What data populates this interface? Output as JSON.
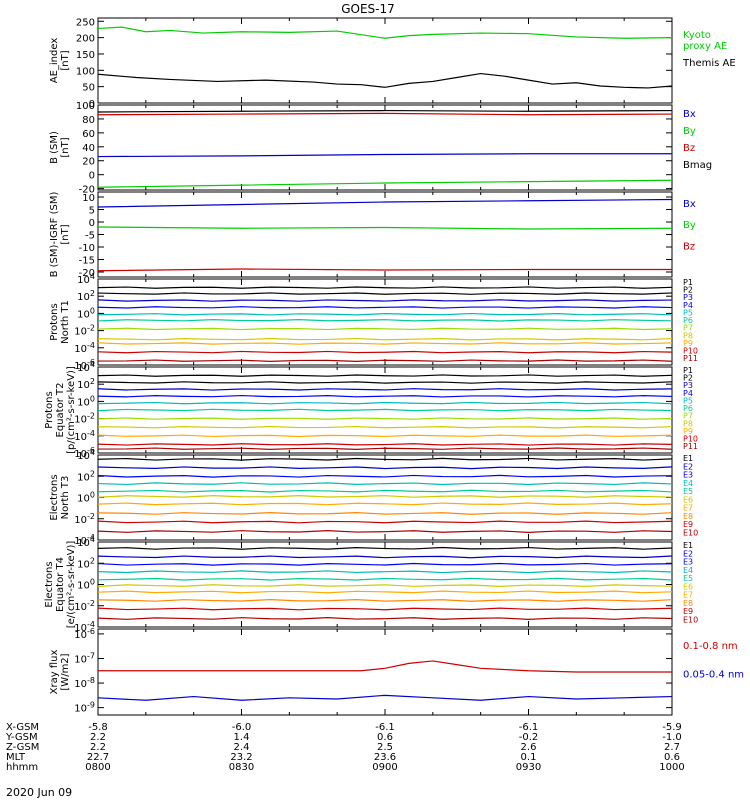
{
  "title": "GOES-17",
  "date_label": "2020 Jun 09",
  "footer": {
    "row_labels": [
      "X-GSM",
      "Y-GSM",
      "Z-GSM",
      "MLT",
      "hhmm"
    ],
    "columns": [
      [
        "-5.8",
        "2.2",
        "2.2",
        "22.7",
        "0800"
      ],
      [
        "-6.0",
        "1.4",
        "2.4",
        "23.2",
        "0830"
      ],
      [
        "-6.1",
        "0.6",
        "2.5",
        "23.6",
        "0900"
      ],
      [
        "-6.1",
        "-0.2",
        "2.6",
        "0.1",
        "0930"
      ],
      [
        "-5.9",
        "-1.0",
        "2.7",
        "0.6",
        "1000"
      ]
    ]
  },
  "colors": {
    "black": "#000000",
    "green": "#00cc00",
    "blue": "#0000cc",
    "red": "#cc0000",
    "cyan": "#00bbbb",
    "teal": "#00cc99",
    "yellow": "#cccc00",
    "orange": "#ff8800",
    "darkred": "#aa0000"
  },
  "chart_data": [
    {
      "type": "line",
      "id": "ae",
      "ylabel": "AE_index\n[nT]",
      "ylim": [
        0,
        260
      ],
      "yticks": [
        "0",
        "50",
        "100",
        "150",
        "200",
        "250"
      ],
      "xlim": [
        "0800",
        "1000"
      ],
      "series": [
        {
          "name": "Kyoto\nproxy AE",
          "color": "#00cc00",
          "x": [
            0,
            5,
            10,
            15,
            22,
            30,
            40,
            50,
            60,
            65,
            70,
            80,
            90,
            100,
            110,
            120
          ],
          "values": [
            228,
            232,
            218,
            222,
            214,
            218,
            216,
            220,
            198,
            206,
            210,
            214,
            212,
            202,
            198,
            200
          ]
        },
        {
          "name": "Themis AE",
          "color": "#000000",
          "x": [
            0,
            8,
            15,
            25,
            35,
            45,
            50,
            55,
            60,
            65,
            70,
            75,
            80,
            85,
            90,
            95,
            100,
            105,
            110,
            115,
            120
          ],
          "values": [
            88,
            78,
            72,
            66,
            70,
            64,
            58,
            56,
            48,
            60,
            66,
            78,
            90,
            82,
            70,
            58,
            62,
            52,
            48,
            46,
            52
          ]
        }
      ]
    },
    {
      "type": "line",
      "id": "bsm",
      "ylabel": "B (SM)\n[nT]",
      "ylim": [
        -22,
        100
      ],
      "yticks": [
        "-20",
        "0",
        "20",
        "40",
        "60",
        "80",
        "100"
      ],
      "series": [
        {
          "name": "Bx",
          "color": "#0000cc",
          "x": [
            0,
            30,
            60,
            90,
            120
          ],
          "values": [
            26,
            27,
            29,
            30,
            30
          ]
        },
        {
          "name": "By",
          "color": "#00cc00",
          "x": [
            0,
            30,
            60,
            90,
            120
          ],
          "values": [
            -18,
            -15,
            -12,
            -10,
            -8
          ]
        },
        {
          "name": "Bz",
          "color": "#cc0000",
          "x": [
            0,
            30,
            60,
            90,
            120
          ],
          "values": [
            86,
            87,
            88,
            86,
            87
          ]
        },
        {
          "name": "Bmag",
          "color": "#000000",
          "x": [
            0,
            30,
            60,
            90,
            120
          ],
          "values": [
            90,
            91,
            92,
            91,
            92
          ]
        }
      ]
    },
    {
      "type": "line",
      "id": "bigrf",
      "ylabel": "B (SM)-IGRF (SM)\n[nT]",
      "ylim": [
        -22,
        12
      ],
      "yticks": [
        "-20",
        "-15",
        "-10",
        "-5",
        "0",
        "5",
        "10"
      ],
      "series": [
        {
          "name": "Bx",
          "color": "#0000cc",
          "x": [
            0,
            30,
            60,
            90,
            120
          ],
          "values": [
            6,
            7,
            8,
            8.5,
            9
          ]
        },
        {
          "name": "By",
          "color": "#00cc00",
          "x": [
            0,
            30,
            60,
            90,
            120
          ],
          "values": [
            -2,
            -2.5,
            -2.2,
            -2.8,
            -2.5
          ]
        },
        {
          "name": "Bz",
          "color": "#cc0000",
          "x": [
            0,
            30,
            60,
            90,
            120
          ],
          "values": [
            -19.5,
            -18.8,
            -19.2,
            -19,
            -19
          ]
        }
      ]
    },
    {
      "type": "line",
      "id": "p1",
      "scale": "log",
      "ylabel": "Protons\nNorth T1",
      "ylim_exp": [
        -6,
        4
      ],
      "yticks": [
        "10^-6",
        "10^-4",
        "10^-2",
        "10^0",
        "10^2",
        "10^4"
      ],
      "series": [
        {
          "name": "P1",
          "color": "#000000",
          "log_values": 3.0
        },
        {
          "name": "P2",
          "color": "#000000",
          "log_values": 2.3
        },
        {
          "name": "P3",
          "color": "#0000cc",
          "log_values": 1.5
        },
        {
          "name": "P4",
          "color": "#0000ff",
          "log_values": 0.7
        },
        {
          "name": "P5",
          "color": "#00bbbb",
          "log_values": -0.1
        },
        {
          "name": "P6",
          "color": "#00cc99",
          "log_values": -0.8
        },
        {
          "name": "P7",
          "color": "#99dd00",
          "log_values": -1.8
        },
        {
          "name": "P8",
          "color": "#cccc00",
          "log_values": -3.0
        },
        {
          "name": "P9",
          "color": "#ffaa00",
          "log_values": -3.5
        },
        {
          "name": "P10",
          "color": "#cc0000",
          "log_values": -4.5
        },
        {
          "name": "P11",
          "color": "#aa0000",
          "log_values": -5.5
        }
      ]
    },
    {
      "type": "line",
      "id": "p2",
      "scale": "log",
      "ylabel": "Protons\nEquator T2\n[p/(cm²-s-sr-keV)]",
      "ylim_exp": [
        -6,
        4
      ],
      "yticks": [
        "10^-6",
        "10^-4",
        "10^-2",
        "10^0",
        "10^2",
        "10^4"
      ],
      "series": [
        {
          "name": "P1",
          "color": "#000000",
          "log_values": 3.0
        },
        {
          "name": "P2",
          "color": "#000000",
          "log_values": 2.2
        },
        {
          "name": "P3",
          "color": "#0000cc",
          "log_values": 1.4
        },
        {
          "name": "P4",
          "color": "#0000ff",
          "log_values": 0.6
        },
        {
          "name": "P5",
          "color": "#00bbbb",
          "log_values": -0.2
        },
        {
          "name": "P6",
          "color": "#00cc99",
          "log_values": -1.0
        },
        {
          "name": "P7",
          "color": "#99dd00",
          "log_values": -2.0
        },
        {
          "name": "P8",
          "color": "#cccc00",
          "log_values": -3.0
        },
        {
          "name": "P9",
          "color": "#ffaa00",
          "log_values": -4.0
        },
        {
          "name": "P10",
          "color": "#cc0000",
          "log_values": -5.0
        },
        {
          "name": "P11",
          "color": "#aa0000",
          "log_values": -5.5
        }
      ]
    },
    {
      "type": "line",
      "id": "e1",
      "scale": "log",
      "ylabel": "Electrons\nNorth T3",
      "ylim_exp": [
        -4,
        4
      ],
      "yticks": [
        "10^-4",
        "10^-2",
        "10^0",
        "10^2",
        "10^4"
      ],
      "series": [
        {
          "name": "E1",
          "color": "#000000",
          "log_values": 3.6
        },
        {
          "name": "E2",
          "color": "#0000cc",
          "log_values": 2.8
        },
        {
          "name": "E3",
          "color": "#0000ff",
          "log_values": 2.0
        },
        {
          "name": "E4",
          "color": "#00bbbb",
          "log_values": 1.3
        },
        {
          "name": "E5",
          "color": "#00cc99",
          "log_values": 0.6
        },
        {
          "name": "E6",
          "color": "#cccc00",
          "log_values": 0.1
        },
        {
          "name": "E7",
          "color": "#ffaa00",
          "log_values": -0.6
        },
        {
          "name": "E8",
          "color": "#ff8800",
          "log_values": -1.5
        },
        {
          "name": "E9",
          "color": "#cc0000",
          "log_values": -2.3
        },
        {
          "name": "E10",
          "color": "#aa0000",
          "log_values": -3.2
        }
      ]
    },
    {
      "type": "line",
      "id": "e2",
      "scale": "log",
      "ylabel": "Electrons\nEquator T4\n[e/(cm²-s-sr-keV)]",
      "ylim_exp": [
        -4,
        4
      ],
      "yticks": [
        "10^-4",
        "10^-2",
        "10^0",
        "10^2",
        "10^4"
      ],
      "series": [
        {
          "name": "E1",
          "color": "#000000",
          "log_values": 3.4
        },
        {
          "name": "E2",
          "color": "#0000cc",
          "log_values": 2.6
        },
        {
          "name": "E3",
          "color": "#0000ff",
          "log_values": 1.9
        },
        {
          "name": "E4",
          "color": "#00bbbb",
          "log_values": 1.2
        },
        {
          "name": "E5",
          "color": "#00cc99",
          "log_values": 0.5
        },
        {
          "name": "E6",
          "color": "#cccc00",
          "log_values": -0.1
        },
        {
          "name": "E7",
          "color": "#ffaa00",
          "log_values": -0.7
        },
        {
          "name": "E8",
          "color": "#ff8800",
          "log_values": -1.5
        },
        {
          "name": "E9",
          "color": "#cc0000",
          "log_values": -2.3
        },
        {
          "name": "E10",
          "color": "#aa0000",
          "log_values": -3.2
        }
      ]
    },
    {
      "type": "line",
      "id": "xray",
      "scale": "log",
      "ylabel": "Xray flux\n[W/m2]",
      "ylim_exp": [
        -9,
        -8
      ],
      "yticks": [
        "10^-9",
        "10^-8",
        "10^-7",
        "10^-6"
      ],
      "series": [
        {
          "name": "0.1-0.8 nm",
          "color": "#cc0000",
          "x": [
            0,
            20,
            40,
            55,
            60,
            65,
            70,
            75,
            80,
            90,
            100,
            110,
            120
          ],
          "values": [
            -7.5,
            -7.5,
            -7.5,
            -7.5,
            -7.4,
            -7.2,
            -7.1,
            -7.25,
            -7.4,
            -7.5,
            -7.55,
            -7.55,
            -7.55
          ]
        },
        {
          "name": "0.05-0.4 nm",
          "color": "#0000cc",
          "x": [
            0,
            10,
            20,
            30,
            40,
            50,
            60,
            70,
            80,
            90,
            100,
            110,
            120
          ],
          "values": [
            -8.6,
            -8.7,
            -8.55,
            -8.7,
            -8.6,
            -8.65,
            -8.5,
            -8.6,
            -8.7,
            -8.55,
            -8.65,
            -8.6,
            -8.55
          ]
        }
      ]
    }
  ]
}
